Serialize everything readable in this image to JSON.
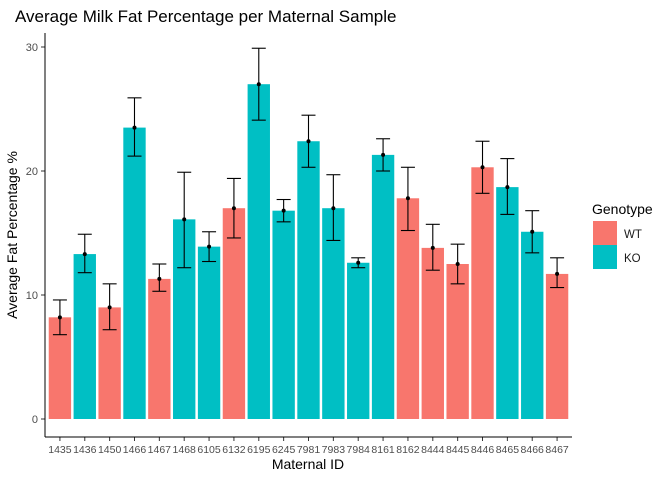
{
  "chart_data": {
    "type": "bar",
    "title": "Average Milk Fat Percentage per Maternal Sample",
    "xlabel": "Maternal ID",
    "ylabel": "Average Fat Percentage %",
    "ylim": [
      0,
      31.5
    ],
    "yticks": [
      0,
      10,
      20,
      30
    ],
    "grid": false,
    "legend": {
      "title": "Genotype",
      "position": "right",
      "items": [
        {
          "label": "WT",
          "color": "#F8766D"
        },
        {
          "label": "KO",
          "color": "#00BFC4"
        }
      ]
    },
    "categories": [
      "1435",
      "1436",
      "1450",
      "1466",
      "1467",
      "1468",
      "6105",
      "6132",
      "6195",
      "6245",
      "7981",
      "7983",
      "7984",
      "8161",
      "8162",
      "8444",
      "8445",
      "8446",
      "8465",
      "8466",
      "8467"
    ],
    "genotype": [
      "WT",
      "KO",
      "WT",
      "KO",
      "WT",
      "KO",
      "KO",
      "WT",
      "KO",
      "KO",
      "KO",
      "KO",
      "KO",
      "KO",
      "WT",
      "WT",
      "WT",
      "WT",
      "KO",
      "KO",
      "WT"
    ],
    "values": [
      8.2,
      13.3,
      9.0,
      23.5,
      11.3,
      16.1,
      13.9,
      17.0,
      27.0,
      16.8,
      22.4,
      17.0,
      12.6,
      21.3,
      17.8,
      13.8,
      12.5,
      20.3,
      18.7,
      15.1,
      11.7
    ],
    "err_low": [
      6.8,
      11.8,
      7.2,
      21.2,
      10.3,
      12.2,
      12.7,
      14.6,
      24.1,
      15.9,
      20.3,
      14.4,
      12.2,
      20.0,
      15.2,
      12.0,
      10.9,
      18.2,
      16.5,
      13.4,
      10.6
    ],
    "err_high": [
      9.6,
      14.9,
      10.9,
      25.9,
      12.5,
      19.9,
      15.1,
      19.4,
      29.9,
      17.7,
      24.5,
      19.7,
      13.0,
      22.6,
      20.3,
      15.7,
      14.1,
      22.4,
      21.0,
      16.8,
      13.0
    ]
  }
}
